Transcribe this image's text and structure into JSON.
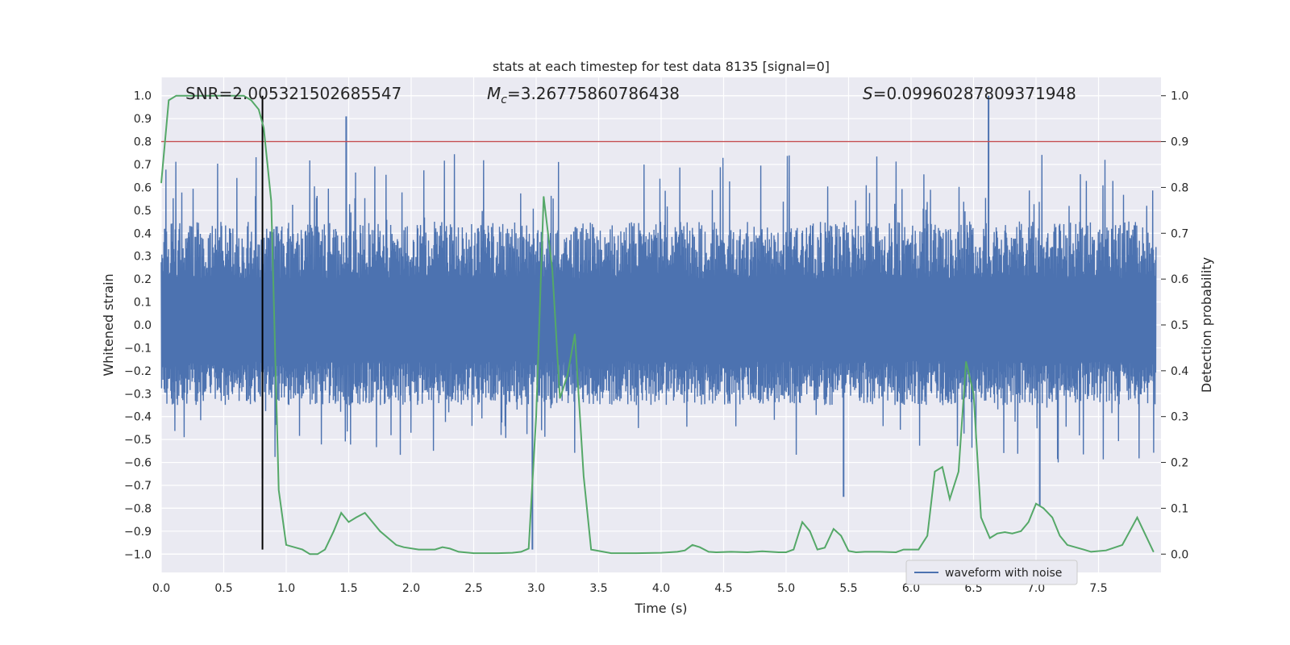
{
  "chart_data": {
    "type": "line",
    "title": "stats at each timestep for test data 8135 [signal=0]",
    "xlabel": "Time (s)",
    "ylabel_left": "Whitened strain",
    "ylabel_right": "Detection probability",
    "xlim": [
      0.0,
      8.0
    ],
    "ylim_left": [
      -1.08,
      1.08
    ],
    "ylim_right": [
      -0.04,
      1.04
    ],
    "xticks": [
      0.0,
      0.5,
      1.0,
      1.5,
      2.0,
      2.5,
      3.0,
      3.5,
      4.0,
      4.5,
      5.0,
      5.5,
      6.0,
      6.5,
      7.0,
      7.5
    ],
    "xtick_labels": [
      "0.0",
      "0.5",
      "1.0",
      "1.5",
      "2.0",
      "2.5",
      "3.0",
      "3.5",
      "4.0",
      "4.5",
      "5.0",
      "5.5",
      "6.0",
      "6.5",
      "7.0",
      "7.5"
    ],
    "yticks_left": [
      1.0,
      0.9,
      0.8,
      0.7,
      0.6,
      0.5,
      0.4,
      0.3,
      0.2,
      0.1,
      0.0,
      -0.1,
      -0.2,
      -0.3,
      -0.4,
      -0.5,
      -0.6,
      -0.7,
      -0.8,
      -0.9,
      -1.0
    ],
    "ytick_labels_left": [
      "1.0",
      "0.9",
      "0.8",
      "0.7",
      "0.6",
      "0.5",
      "0.4",
      "0.3",
      "0.2",
      "0.1",
      "0.0",
      "−0.1",
      "−0.2",
      "−0.3",
      "−0.4",
      "−0.5",
      "−0.6",
      "−0.7",
      "−0.8",
      "−0.9",
      "−1.0"
    ],
    "yticks_right": [
      1.0,
      0.9,
      0.8,
      0.7,
      0.6,
      0.5,
      0.4,
      0.3,
      0.2,
      0.1,
      0.0
    ],
    "ytick_labels_right": [
      "1.0",
      "0.9",
      "0.8",
      "0.7",
      "0.6",
      "0.5",
      "0.4",
      "0.3",
      "0.2",
      "0.1",
      "0.0"
    ],
    "annotations": {
      "snr_label": "SNR=2.005321502685547",
      "mc_label": "=3.26775860786438",
      "mc_symbol": "M",
      "mc_subscript": "c",
      "s_symbol": "S",
      "s_label": "=0.09960287809371948"
    },
    "threshold_line": {
      "axis": "right",
      "y": 0.9,
      "color": "#c44e52"
    },
    "marker_line": {
      "x": 0.81,
      "y_range": [
        -0.98,
        1.0
      ],
      "color": "#000000"
    },
    "legend": {
      "entries": [
        "waveform with noise"
      ],
      "location": "lower-right"
    },
    "series": [
      {
        "name": "waveform with noise",
        "axis": "left",
        "color": "#4c72b0",
        "kind": "noise",
        "envelope_upper_approx": 0.45,
        "envelope_lower_approx": -0.35,
        "noted_spikes": [
          {
            "x": 1.48,
            "y": 0.91
          },
          {
            "x": 6.62,
            "y": 1.0
          },
          {
            "x": 2.97,
            "y": -0.98
          },
          {
            "x": 0.81,
            "y": -0.67
          },
          {
            "x": 5.46,
            "y": -0.75
          },
          {
            "x": 7.03,
            "y": -0.79
          }
        ]
      },
      {
        "name": "detection probability",
        "axis": "right",
        "color": "#55a868",
        "x": [
          0.0,
          0.06,
          0.12,
          0.2,
          0.3,
          0.4,
          0.5,
          0.6,
          0.66,
          0.72,
          0.78,
          0.82,
          0.88,
          0.94,
          1.0,
          1.13,
          1.19,
          1.25,
          1.31,
          1.38,
          1.44,
          1.5,
          1.56,
          1.63,
          1.75,
          1.88,
          1.94,
          2.06,
          2.19,
          2.25,
          2.31,
          2.38,
          2.5,
          2.69,
          2.81,
          2.88,
          2.94,
          3.0,
          3.06,
          3.13,
          3.19,
          3.25,
          3.31,
          3.38,
          3.44,
          3.6,
          3.8,
          4.0,
          4.13,
          4.19,
          4.25,
          4.31,
          4.38,
          4.44,
          4.56,
          4.69,
          4.81,
          4.94,
          5.0,
          5.06,
          5.13,
          5.19,
          5.25,
          5.31,
          5.38,
          5.44,
          5.5,
          5.56,
          5.63,
          5.75,
          5.88,
          5.94,
          6.06,
          6.13,
          6.19,
          6.25,
          6.31,
          6.38,
          6.44,
          6.5,
          6.56,
          6.63,
          6.69,
          6.75,
          6.81,
          6.88,
          6.94,
          7.0,
          7.06,
          7.13,
          7.19,
          7.25,
          7.38,
          7.44,
          7.56,
          7.69,
          7.81,
          7.94
        ],
        "y": [
          0.81,
          0.99,
          1.0,
          1.0,
          1.0,
          1.0,
          1.0,
          1.0,
          1.0,
          0.99,
          0.97,
          0.93,
          0.77,
          0.14,
          0.02,
          0.01,
          0.0,
          0.0,
          0.01,
          0.05,
          0.09,
          0.07,
          0.08,
          0.09,
          0.05,
          0.02,
          0.015,
          0.01,
          0.01,
          0.015,
          0.012,
          0.005,
          0.002,
          0.002,
          0.003,
          0.005,
          0.012,
          0.3,
          0.78,
          0.62,
          0.34,
          0.39,
          0.48,
          0.17,
          0.01,
          0.002,
          0.002,
          0.003,
          0.005,
          0.008,
          0.02,
          0.015,
          0.005,
          0.004,
          0.005,
          0.004,
          0.006,
          0.004,
          0.004,
          0.01,
          0.07,
          0.05,
          0.01,
          0.014,
          0.055,
          0.04,
          0.007,
          0.004,
          0.005,
          0.005,
          0.004,
          0.01,
          0.01,
          0.04,
          0.18,
          0.19,
          0.12,
          0.18,
          0.42,
          0.35,
          0.08,
          0.035,
          0.045,
          0.048,
          0.045,
          0.05,
          0.07,
          0.11,
          0.1,
          0.08,
          0.04,
          0.02,
          0.01,
          0.005,
          0.008,
          0.02,
          0.08,
          0.005
        ]
      }
    ]
  }
}
